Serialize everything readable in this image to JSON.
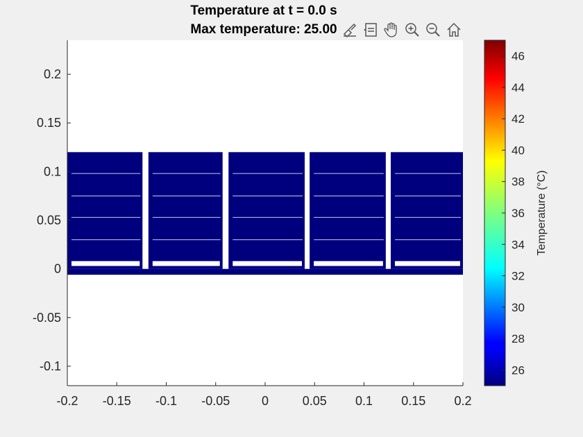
{
  "chart_data": {
    "type": "heatmap",
    "title_lines": [
      "Temperature at t = 0.0 s",
      "Max temperature: 25.00"
    ],
    "xlim": [
      -0.2,
      0.2
    ],
    "ylim": [
      -0.12,
      0.235
    ],
    "x_ticks": [
      "-0.2",
      "-0.15",
      "-0.1",
      "-0.05",
      "0",
      "0.05",
      "0.1",
      "0.15",
      "0.2"
    ],
    "x_tick_values": [
      -0.2,
      -0.15,
      -0.1,
      -0.05,
      0,
      0.05,
      0.1,
      0.15,
      0.2
    ],
    "y_ticks": [
      "0.2",
      "0.15",
      "0.1",
      "0.05",
      "0",
      "-0.05",
      "-0.1"
    ],
    "y_tick_values": [
      0.2,
      0.15,
      0.1,
      0.05,
      0,
      -0.05,
      -0.1
    ],
    "base_plate": {
      "x": [
        -0.2,
        0.2
      ],
      "y": [
        -0.006,
        0.0
      ],
      "temperature": 25
    },
    "modules": [
      {
        "x": [
          -0.2,
          -0.124
        ],
        "y": [
          0.0,
          0.12
        ],
        "temperature": 25
      },
      {
        "x": [
          -0.118,
          -0.043
        ],
        "y": [
          0.0,
          0.12
        ],
        "temperature": 25
      },
      {
        "x": [
          -0.037,
          0.04
        ],
        "y": [
          0.0,
          0.12
        ],
        "temperature": 25
      },
      {
        "x": [
          0.045,
          0.122
        ],
        "y": [
          0.0,
          0.12
        ],
        "temperature": 25
      },
      {
        "x": [
          0.127,
          0.2
        ],
        "y": [
          0.0,
          0.12
        ],
        "temperature": 25
      }
    ],
    "fin_lines_y": [
      0.098,
      0.075,
      0.053,
      0.03
    ],
    "bottom_strip_y": [
      0.003,
      0.008
    ],
    "colormap": "jet",
    "colorbar": {
      "label": "Temperature (°C)",
      "range": [
        25,
        47
      ],
      "ticks": [
        "46",
        "44",
        "42",
        "40",
        "38",
        "36",
        "34",
        "32",
        "30",
        "28",
        "26"
      ],
      "tick_values": [
        46,
        44,
        42,
        40,
        38,
        36,
        34,
        32,
        30,
        28,
        26
      ]
    },
    "colors": {
      "cold": "#00007f",
      "background": "#f0f0f0",
      "axes": "#ffffff"
    }
  },
  "toolbar": {
    "icons": [
      "brush-icon",
      "datatip-icon",
      "pan-icon",
      "zoom-in-icon",
      "zoom-out-icon",
      "home-icon"
    ]
  }
}
